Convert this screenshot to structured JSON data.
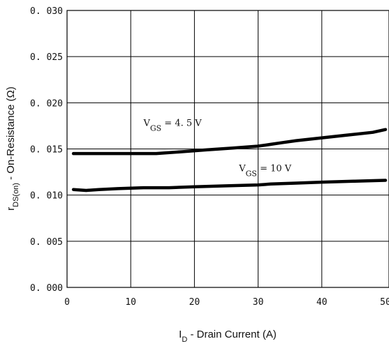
{
  "chart_data": {
    "type": "line",
    "xlabel_main": "I",
    "xlabel_sub": "D",
    "xlabel_rest": "  -  Drain Current (A)",
    "ylabel_main": "r",
    "ylabel_sub": "DS(on)",
    "ylabel_rest": " - On-Resistance (Ω)",
    "xlim": [
      0,
      50
    ],
    "ylim": [
      0.0,
      0.03
    ],
    "xticks": [
      "0",
      "10",
      "20",
      "30",
      "40",
      "50"
    ],
    "yticks": [
      "0. 000",
      "0. 005",
      "0. 010",
      "0. 015",
      "0. 020",
      "0. 025",
      "0. 030"
    ],
    "grid": true,
    "series": [
      {
        "x": [
          1,
          5,
          10,
          14,
          18,
          22,
          26,
          30,
          32,
          34,
          36,
          40,
          44,
          48,
          50
        ],
        "values": [
          0.0145,
          0.0145,
          0.0145,
          0.0145,
          0.0147,
          0.0149,
          0.0151,
          0.0153,
          0.0155,
          0.0157,
          0.0159,
          0.0162,
          0.0165,
          0.0168,
          0.0171
        ]
      },
      {
        "x": [
          1,
          3,
          5,
          8,
          12,
          16,
          20,
          25,
          30,
          32,
          36,
          40,
          45,
          50
        ],
        "values": [
          0.0106,
          0.0105,
          0.0106,
          0.0107,
          0.0108,
          0.0108,
          0.0109,
          0.011,
          0.0111,
          0.0112,
          0.0113,
          0.0114,
          0.0115,
          0.0116
        ]
      }
    ],
    "annotations": [
      {
        "main": "V",
        "sub": "GS",
        "rest": "  = 4. 5  V",
        "x": 12,
        "y": 0.0175
      },
      {
        "main": "V",
        "sub": "GS",
        "rest": "  = 10  V",
        "x": 27,
        "y": 0.0126
      }
    ]
  }
}
